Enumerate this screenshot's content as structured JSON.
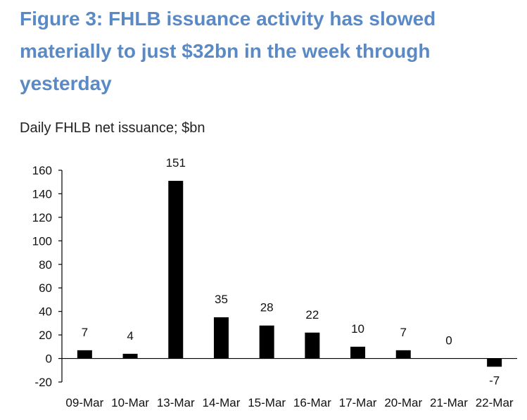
{
  "title": "Figure 3: FHLB issuance activity has slowed materially to just $32bn in the week through yesterday",
  "subtitle": "Daily FHLB net issuance; $bn",
  "colors": {
    "title": "#5a8ac6",
    "bar": "#000000",
    "text": "#111111"
  },
  "chart_data": {
    "type": "bar",
    "categories": [
      "09-Mar",
      "10-Mar",
      "13-Mar",
      "14-Mar",
      "15-Mar",
      "16-Mar",
      "17-Mar",
      "20-Mar",
      "21-Mar",
      "22-Mar"
    ],
    "values": [
      7,
      4,
      151,
      35,
      28,
      22,
      10,
      7,
      0,
      -7
    ],
    "data_labels": [
      "7",
      "4",
      "151",
      "35",
      "28",
      "22",
      "10",
      "7",
      "0",
      "-7"
    ],
    "ylim": [
      -20,
      160
    ],
    "yticks": [
      -20,
      0,
      20,
      40,
      60,
      80,
      100,
      120,
      140,
      160
    ],
    "grid": false,
    "xlabel": "",
    "ylabel": ""
  }
}
